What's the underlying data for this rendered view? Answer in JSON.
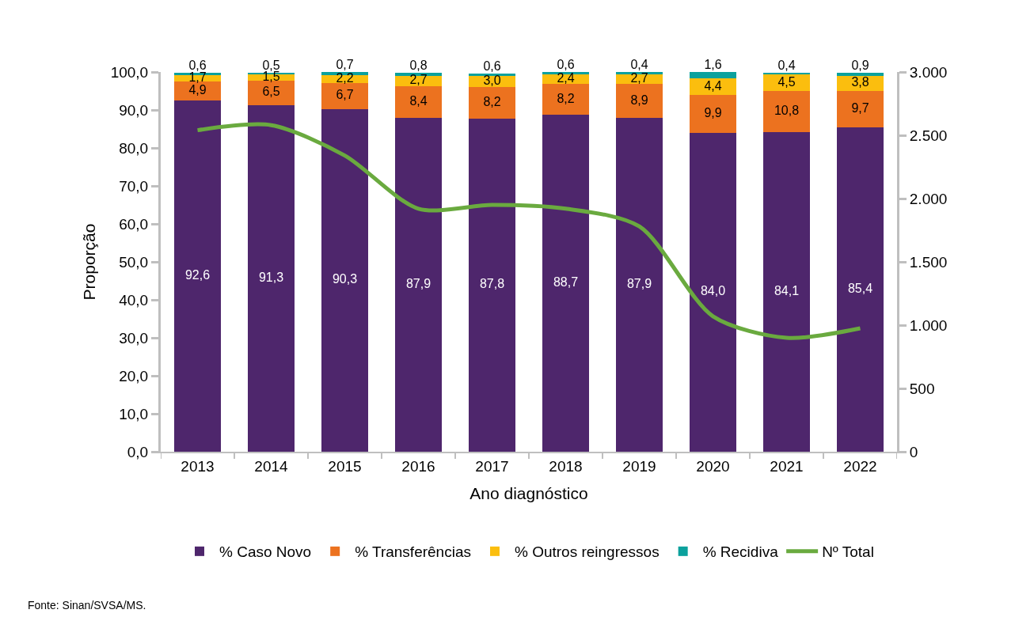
{
  "chart_data": {
    "type": "bar",
    "stacked": true,
    "xlabel": "Ano diagnóstico",
    "ylabel": "Proporção",
    "categories": [
      "2013",
      "2014",
      "2015",
      "2016",
      "2017",
      "2018",
      "2019",
      "2020",
      "2021",
      "2022"
    ],
    "ylim": [
      0,
      100
    ],
    "yticks": [
      {
        "value": 0,
        "label": "0,0"
      },
      {
        "value": 10,
        "label": "10,0"
      },
      {
        "value": 20,
        "label": "20,0"
      },
      {
        "value": 30,
        "label": "30,0"
      },
      {
        "value": 40,
        "label": "40,0"
      },
      {
        "value": 50,
        "label": "50,0"
      },
      {
        "value": 60,
        "label": "60,0"
      },
      {
        "value": 70,
        "label": "70,0"
      },
      {
        "value": 80,
        "label": "80,0"
      },
      {
        "value": 90,
        "label": "90,0"
      },
      {
        "value": 100,
        "label": "100,0"
      }
    ],
    "y2lim": [
      0,
      3000
    ],
    "y2ticks": [
      0,
      500,
      {
        "value": 1000,
        "label": "1.000"
      },
      {
        "value": 1500,
        "label": "1.500"
      },
      {
        "value": 2000,
        "label": "2.000"
      },
      {
        "value": 2500,
        "label": "2.500"
      },
      {
        "value": 3000,
        "label": "3.000"
      }
    ],
    "series": [
      {
        "name": "% Caso Novo",
        "color": "#4e266c",
        "values": [
          92.6,
          91.3,
          90.3,
          87.9,
          87.8,
          88.7,
          87.9,
          84.0,
          84.1,
          85.4
        ],
        "value_labels": [
          "92,6",
          "91,3",
          "90,3",
          "87,9",
          "87,8",
          "88,7",
          "87,9",
          "84,0",
          "84,1",
          "85,4"
        ]
      },
      {
        "name": "% Transferências",
        "color": "#ec721f",
        "values": [
          4.9,
          6.5,
          6.7,
          8.4,
          8.2,
          8.2,
          8.9,
          9.9,
          10.8,
          9.7
        ],
        "value_labels": [
          "4,9",
          "6,5",
          "6,7",
          "8,4",
          "8,2",
          "8,2",
          "8,9",
          "9,9",
          "10,8",
          "9,7"
        ]
      },
      {
        "name": "% Outros reingressos",
        "color": "#fbbe0e",
        "values": [
          1.7,
          1.5,
          2.2,
          2.7,
          3.0,
          2.4,
          2.7,
          4.4,
          4.5,
          3.8
        ],
        "value_labels": [
          "1,7",
          "1,5",
          "2,2",
          "2,7",
          "3,0",
          "2,4",
          "2,7",
          "4,4",
          "4,5",
          "3,8"
        ]
      },
      {
        "name": "% Recidiva",
        "color": "#0ba19d",
        "values": [
          0.6,
          0.5,
          0.7,
          0.8,
          0.6,
          0.6,
          0.4,
          1.6,
          0.4,
          0.9
        ],
        "value_labels": [
          "0,6",
          "0,5",
          "0,7",
          "0,8",
          "0,6",
          "0,6",
          "0,4",
          "1,6",
          "0,4",
          "0,9"
        ]
      },
      {
        "name": "Nº Total",
        "type": "line",
        "axis": "y2",
        "color": "#6aaa3f",
        "values": [
          2540,
          2580,
          2340,
          1920,
          1950,
          1920,
          1780,
          1070,
          900,
          975
        ]
      }
    ],
    "legend": "bottom",
    "annotations": [
      "Fonte: Sinan/SVSA/MS."
    ]
  }
}
